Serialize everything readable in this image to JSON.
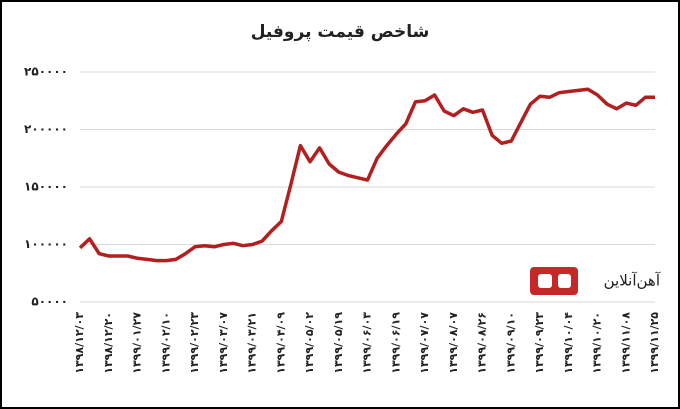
{
  "chart_data": {
    "type": "line",
    "title": "شاخص قیمت پروفیل",
    "brand": "آهن‌آنلاین",
    "categories": [
      "۱۳۹۸/۱۲/۰۳",
      null,
      null,
      "۱۳۹۸/۱۲/۲۰",
      null,
      null,
      "۱۳۹۹/۰۱/۲۷",
      null,
      null,
      "۱۳۹۹/۰۲/۱۰",
      null,
      null,
      "۱۳۹۹/۰۲/۲۳",
      null,
      null,
      "۱۳۹۹/۰۳/۰۷",
      null,
      null,
      "۱۳۹۹/۰۳/۲۱",
      null,
      null,
      "۱۳۹۹/۰۴/۰۹",
      null,
      null,
      "۱۳۹۹/۰۵/۰۲",
      null,
      null,
      "۱۳۹۹/۰۵/۱۹",
      null,
      null,
      "۱۳۹۹/۰۶/۰۳",
      null,
      null,
      "۱۳۹۹/۰۶/۱۹",
      null,
      null,
      "۱۳۹۹/۰۷/۰۷",
      null,
      null,
      "۱۳۹۹/۰۸/۰۷",
      null,
      null,
      "۱۳۹۹/۰۸/۲۶",
      null,
      null,
      "۱۳۹۹/۰۹/۱۰",
      null,
      null,
      "۱۳۹۹/۰۹/۲۳",
      null,
      null,
      "۱۳۹۹/۱۰/۰۴",
      null,
      null,
      "۱۳۹۹/۱۰/۲۰",
      null,
      null,
      "۱۳۹۹/۱۱/۰۸",
      null,
      null,
      "۱۳۹۹/۱۱/۲۵"
    ],
    "values": [
      97000,
      105000,
      92000,
      90000,
      90000,
      90000,
      88000,
      87000,
      86000,
      86000,
      87000,
      92000,
      98000,
      99000,
      98000,
      100000,
      101000,
      99000,
      100000,
      103000,
      112000,
      120000,
      152000,
      186000,
      172000,
      184000,
      170000,
      163000,
      160000,
      158000,
      156000,
      175000,
      186000,
      196000,
      205000,
      224000,
      225000,
      230000,
      216000,
      212000,
      218000,
      215000,
      217000,
      195000,
      188000,
      190000,
      206000,
      222000,
      229000,
      228000,
      232000,
      233000,
      234000,
      235000,
      230000,
      222000,
      218000,
      223000,
      221000,
      228000,
      228000
    ],
    "color": "#b31f1f",
    "ylim": [
      50000,
      250000
    ],
    "yticks": [
      {
        "value": 50000,
        "label": "۵۰۰۰۰"
      },
      {
        "value": 100000,
        "label": "۱۰۰۰۰۰"
      },
      {
        "value": 150000,
        "label": "۱۵۰۰۰۰"
      },
      {
        "value": 200000,
        "label": "۲۰۰۰۰۰"
      },
      {
        "value": 250000,
        "label": "۲۵۰۰۰۰"
      }
    ],
    "grid": true
  }
}
